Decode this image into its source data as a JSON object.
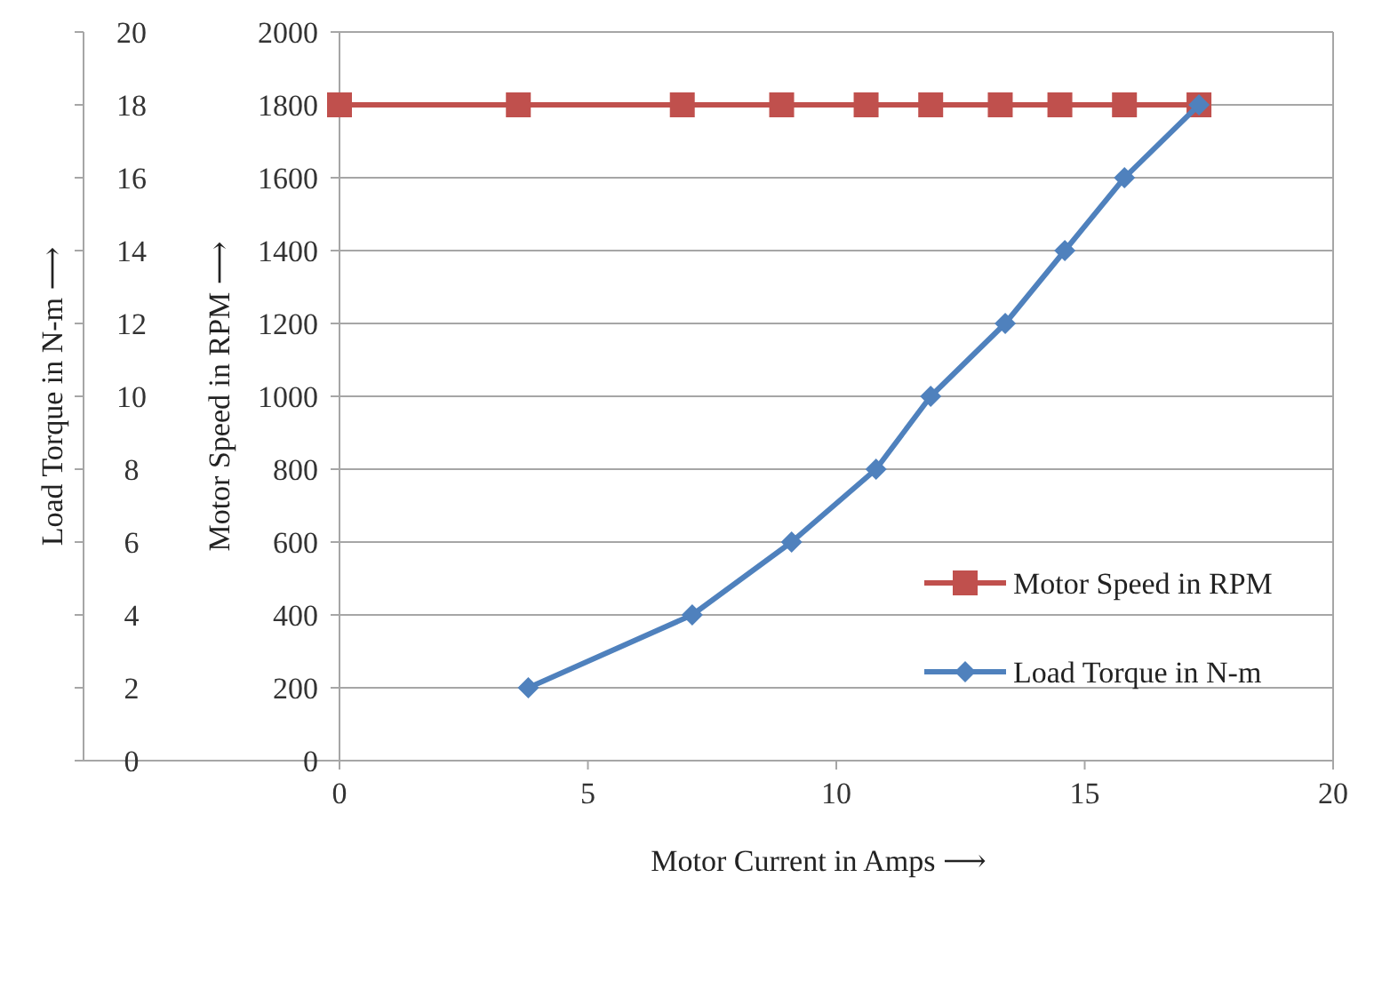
{
  "chart_data": {
    "type": "line",
    "xlabel": "Motor Current in Amps ⟶",
    "ylabel": "Motor Speed in RPM ⟶",
    "y2label": "Load Torque in N-m ⟶",
    "xlim": [
      0,
      20
    ],
    "xticks": [
      0,
      5,
      10,
      15,
      20
    ],
    "ylim": [
      0,
      2000
    ],
    "yticks": [
      0,
      200,
      400,
      600,
      800,
      1000,
      1200,
      1400,
      1600,
      1800,
      2000
    ],
    "y2lim": [
      0,
      20
    ],
    "y2ticks": [
      0,
      2,
      4,
      6,
      8,
      10,
      12,
      14,
      16,
      18,
      20
    ],
    "grid": "y",
    "legend": "bottom right",
    "line_style": "solid",
    "series": [
      {
        "name": "Motor Speed in RPM",
        "color": "#c0504d",
        "marker": "square",
        "x": [
          0,
          3.6,
          6.9,
          8.9,
          10.6,
          11.9,
          13.3,
          14.5,
          15.8,
          17.3
        ],
        "values": [
          1800,
          1800,
          1800,
          1800,
          1800,
          1800,
          1800,
          1800,
          1800,
          1800
        ]
      },
      {
        "name": "Load Torque in N-m",
        "color": "#4f81bd",
        "marker": "diamond",
        "axis": "y2",
        "x": [
          3.8,
          7.1,
          9.1,
          10.8,
          11.9,
          13.4,
          14.6,
          15.8,
          17.3
        ],
        "values": [
          2,
          4,
          6,
          8,
          10,
          12,
          14,
          16,
          18
        ]
      }
    ]
  }
}
